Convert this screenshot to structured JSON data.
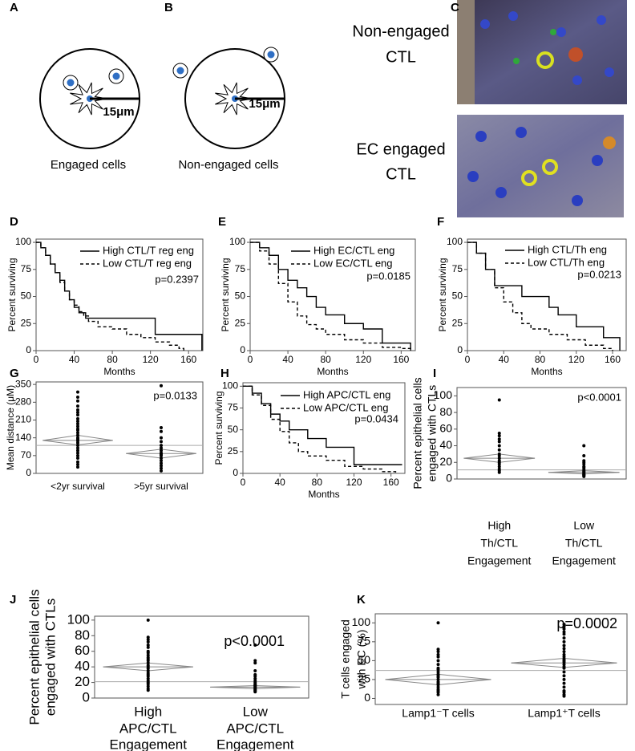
{
  "diagrams": [
    {
      "panel": "A",
      "scale_label": "15μm",
      "caption": "Engaged cells"
    },
    {
      "panel": "B",
      "scale_label": "15μm",
      "caption": "Non-engaged cells"
    }
  ],
  "images": {
    "panel": "C",
    "labels": [
      [
        "Non-engaged",
        "CTL"
      ],
      [
        "EC engaged",
        "CTL"
      ]
    ]
  },
  "chart_data": [
    {
      "panel": "D",
      "type": "step",
      "xlabel": "Months",
      "ylabel": "Percent surviving",
      "xlim": [
        0,
        175
      ],
      "ylim": [
        0,
        103
      ],
      "xticks": [
        0,
        40,
        80,
        120,
        160
      ],
      "yticks": [
        0,
        25,
        50,
        75,
        100
      ],
      "annotation": "p=0.2397",
      "series": [
        {
          "name": "High CTL/T reg eng",
          "color": "#000000",
          "dash": false,
          "x": [
            0,
            5,
            10,
            15,
            20,
            25,
            30,
            35,
            40,
            45,
            52,
            125,
            172,
            174
          ],
          "values": [
            100,
            95,
            88,
            80,
            72,
            65,
            55,
            47,
            40,
            35,
            30,
            15,
            15,
            0
          ]
        },
        {
          "name": "Low CTL/T reg eng",
          "color": "#000000",
          "dash": true,
          "x": [
            0,
            5,
            10,
            15,
            20,
            25,
            30,
            35,
            40,
            45,
            50,
            55,
            65,
            80,
            95,
            110,
            125,
            140,
            150,
            155
          ],
          "values": [
            100,
            95,
            88,
            80,
            72,
            63,
            55,
            47,
            42,
            36,
            32,
            27,
            22,
            20,
            15,
            12,
            8,
            5,
            2,
            0
          ]
        }
      ]
    },
    {
      "panel": "E",
      "type": "step",
      "xlabel": "Months",
      "ylabel": "Percent surviving",
      "xlim": [
        0,
        175
      ],
      "ylim": [
        0,
        103
      ],
      "xticks": [
        0,
        40,
        80,
        120,
        160
      ],
      "yticks": [
        0,
        25,
        50,
        75,
        100
      ],
      "annotation": "p=0.0185",
      "series": [
        {
          "name": "High EC/CTL eng",
          "color": "#000000",
          "dash": false,
          "x": [
            0,
            10,
            20,
            30,
            40,
            50,
            60,
            70,
            80,
            100,
            120,
            140,
            170
          ],
          "values": [
            100,
            95,
            88,
            75,
            65,
            58,
            50,
            40,
            33,
            25,
            20,
            7,
            0
          ]
        },
        {
          "name": "Low EC/CTL eng",
          "color": "#000000",
          "dash": true,
          "x": [
            0,
            10,
            20,
            30,
            40,
            50,
            60,
            70,
            80,
            100,
            120,
            140,
            160,
            170
          ],
          "values": [
            100,
            92,
            80,
            62,
            45,
            32,
            24,
            20,
            15,
            10,
            7,
            3,
            2,
            0
          ]
        }
      ]
    },
    {
      "panel": "F",
      "type": "step",
      "xlabel": "Months",
      "ylabel": "Percent surviving",
      "xlim": [
        0,
        175
      ],
      "ylim": [
        0,
        103
      ],
      "xticks": [
        0,
        40,
        80,
        120,
        160
      ],
      "yticks": [
        0,
        25,
        50,
        75,
        100
      ],
      "annotation": "p=0.0213",
      "series": [
        {
          "name": "High CTL/Th eng",
          "color": "#000000",
          "dash": false,
          "x": [
            0,
            10,
            20,
            30,
            60,
            90,
            100,
            120,
            150,
            168
          ],
          "values": [
            100,
            90,
            75,
            60,
            50,
            40,
            33,
            22,
            12,
            0
          ]
        },
        {
          "name": "Low CTL/Th eng",
          "color": "#000000",
          "dash": true,
          "x": [
            0,
            10,
            20,
            30,
            40,
            50,
            60,
            70,
            90,
            110,
            130,
            150,
            160
          ],
          "values": [
            100,
            90,
            75,
            58,
            45,
            35,
            25,
            20,
            15,
            10,
            5,
            2,
            0
          ]
        }
      ]
    },
    {
      "panel": "G",
      "type": "dot",
      "ylabel": [
        "Mean distance (μM)"
      ],
      "ylim": [
        0,
        360
      ],
      "yticks": [
        0,
        70,
        140,
        210,
        280,
        350
      ],
      "annotation": "p=0.0133",
      "categories": [
        [
          "<2yr survival"
        ],
        [
          ">5yr survival"
        ]
      ],
      "points": [
        [
          320,
          300,
          285,
          265,
          250,
          240,
          230,
          215,
          205,
          195,
          185,
          175,
          170,
          160,
          150,
          140,
          135,
          128,
          120,
          110,
          100,
          90,
          80,
          70,
          60,
          45,
          35,
          25
        ],
        [
          345,
          180,
          165,
          140,
          125,
          110,
          100,
          90,
          80,
          75,
          70,
          60,
          50,
          40,
          30,
          20,
          10
        ]
      ],
      "means": [
        130,
        78
      ],
      "ci": [
        [
          112,
          150
        ],
        [
          60,
          95
        ]
      ],
      "grand_mean": 110
    },
    {
      "panel": "H",
      "type": "step",
      "xlabel": "Months",
      "ylabel": "Percent surviving",
      "xlim": [
        0,
        175
      ],
      "ylim": [
        0,
        104
      ],
      "xticks": [
        0,
        40,
        80,
        120,
        160
      ],
      "yticks": [
        0,
        25,
        50,
        75,
        100
      ],
      "annotation": "p=0.0434",
      "series": [
        {
          "name": "High APC/CTL eng",
          "color": "#000000",
          "dash": false,
          "x": [
            0,
            10,
            20,
            30,
            40,
            50,
            70,
            90,
            120,
            172
          ],
          "values": [
            100,
            92,
            80,
            68,
            60,
            50,
            40,
            30,
            10,
            10
          ]
        },
        {
          "name": "Low APC/CTL eng",
          "color": "#000000",
          "dash": true,
          "x": [
            0,
            10,
            20,
            30,
            40,
            50,
            60,
            70,
            90,
            110,
            130,
            150,
            165
          ],
          "values": [
            100,
            90,
            78,
            62,
            48,
            35,
            25,
            20,
            15,
            8,
            5,
            2,
            0
          ]
        }
      ]
    },
    {
      "panel": "I",
      "type": "dot",
      "ylabel": [
        "Percent epithelial cells",
        "engaged with CTLs"
      ],
      "ylim": [
        0,
        110
      ],
      "yticks": [
        0,
        20,
        40,
        60,
        80,
        100
      ],
      "annotation": "p<0.0001",
      "categories": [
        [
          "High",
          "Th/CTL",
          "Engagement"
        ],
        [
          "Low",
          "Th/CTL",
          "Engagement"
        ]
      ],
      "points": [
        [
          95,
          55,
          52,
          48,
          45,
          40,
          35,
          30,
          28,
          25,
          22,
          20,
          18,
          15,
          12,
          10,
          8
        ],
        [
          40,
          28,
          22,
          20,
          18,
          15,
          14,
          12,
          10,
          9,
          8,
          7,
          6,
          5,
          5,
          4,
          3
        ]
      ],
      "means": [
        25,
        8
      ],
      "ci": [
        [
          20,
          30
        ],
        [
          6,
          10
        ]
      ],
      "grand_mean": 11
    },
    {
      "panel": "J",
      "type": "dot",
      "ylabel": [
        "Percent epithelial cells",
        "engaged with CTLs"
      ],
      "ylim": [
        0,
        105
      ],
      "yticks": [
        0,
        20,
        40,
        60,
        80,
        100
      ],
      "annotation": "p<0.0001",
      "categories": [
        [
          "High",
          "APC/CTL",
          "Engagement"
        ],
        [
          "Low",
          "APC/CTL",
          "Engagement"
        ]
      ],
      "points": [
        [
          100,
          78,
          75,
          72,
          68,
          65,
          60,
          58,
          55,
          52,
          50,
          48,
          45,
          42,
          40,
          38,
          35,
          32,
          30,
          28,
          25,
          22,
          20,
          18,
          15,
          12,
          10
        ],
        [
          68,
          48,
          45,
          35,
          30,
          28,
          25,
          22,
          20,
          18,
          17,
          16,
          15,
          14,
          13,
          12,
          11,
          10,
          9,
          8
        ]
      ],
      "means": [
        40,
        14
      ],
      "ci": [
        [
          35,
          45
        ],
        [
          12,
          16
        ]
      ],
      "grand_mean": 21
    },
    {
      "panel": "K",
      "type": "dot",
      "ylabel": [
        "T cells engaged",
        "with EC (%)"
      ],
      "ylim": [
        -8,
        112
      ],
      "yticks": [
        0,
        25,
        50,
        75,
        100
      ],
      "annotation": "p=0.0002",
      "categories": [
        [
          "Lamp1⁻T cells"
        ],
        [
          "Lamp1⁺T cells"
        ]
      ],
      "points": [
        [
          100,
          65,
          62,
          58,
          55,
          50,
          45,
          40,
          38,
          35,
          32,
          30,
          28,
          25,
          22,
          20,
          18,
          15,
          12,
          10,
          8,
          5
        ],
        [
          98,
          95,
          92,
          88,
          85,
          80,
          75,
          70,
          66,
          62,
          58,
          55,
          52,
          50,
          48,
          45,
          42,
          40,
          35,
          30,
          25,
          20,
          15,
          10,
          8,
          5,
          3
        ]
      ],
      "means": [
        25,
        47
      ],
      "ci": [
        [
          18,
          32
        ],
        [
          41,
          53
        ]
      ],
      "grand_mean": 37
    }
  ]
}
